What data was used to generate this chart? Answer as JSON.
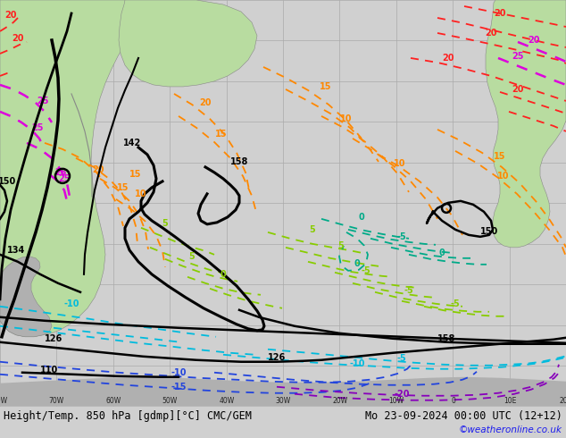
{
  "title_left": "Height/Temp. 850 hPa [gdmp][°C] CMC/GEM",
  "title_right": "Mo 23-09-2024 00:00 UTC (12+12)",
  "credit": "©weatheronline.co.uk",
  "bg_color": "#d8d8d8",
  "land_green": "#b8dca0",
  "land_gray": "#b0b0b0",
  "grid_color": "#aaaaaa",
  "fig_width": 6.34,
  "fig_height": 4.9,
  "dpi": 100
}
